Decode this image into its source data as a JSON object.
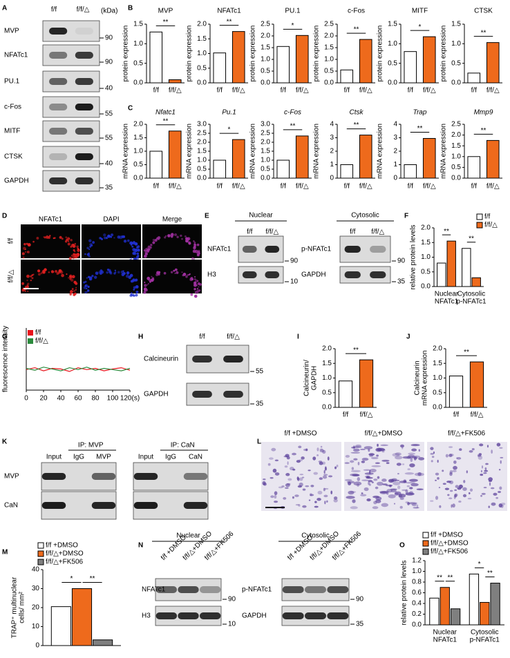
{
  "panel_letters": [
    "A",
    "B",
    "C",
    "D",
    "E",
    "F",
    "G",
    "H",
    "I",
    "J",
    "K",
    "L",
    "M",
    "N",
    "O"
  ],
  "panel_a": {
    "headers": [
      "f/f",
      "f/f/△"
    ],
    "unit": "(kDa)",
    "rows": [
      {
        "label": "MVP",
        "marker": 90
      },
      {
        "label": "NFATc1",
        "marker": 90
      },
      {
        "label": "PU.1",
        "marker": 40
      },
      {
        "label": "c-Fos",
        "marker": 55
      },
      {
        "label": "MITF",
        "marker": 55
      },
      {
        "label": "CTSK",
        "marker": 40
      },
      {
        "label": "GAPDH",
        "marker": 35
      }
    ]
  },
  "panel_d": {
    "channels": [
      "NFATc1",
      "DAPI",
      "Merge"
    ],
    "rows": [
      "f/f",
      "f/f/△"
    ]
  },
  "panel_e": {
    "nuclear": {
      "title": "Nuclear",
      "lanes": [
        "f/f",
        "f/f/△"
      ],
      "rows": [
        {
          "label": "NFATc1",
          "marker": 90
        },
        {
          "label": "H3",
          "marker": 10
        }
      ]
    },
    "cytosolic": {
      "title": "Cytosolic",
      "lanes": [
        "f/f",
        "f/f/△"
      ],
      "rows": [
        {
          "label": "p-NFATc1",
          "marker": 90
        },
        {
          "label": "GAPDH",
          "marker": 35
        }
      ]
    }
  },
  "panel_h": {
    "lanes": [
      "f/f",
      "f/f/△"
    ],
    "rows": [
      {
        "label": "Calcineurin",
        "marker": 55
      },
      {
        "label": "GAPDH",
        "marker": 35
      }
    ]
  },
  "panel_k": {
    "rows": [
      "MVP",
      "CaN"
    ],
    "groups": [
      {
        "title": "IP: MVP",
        "lanes": [
          "Input",
          "IgG",
          "MVP"
        ]
      },
      {
        "title": "IP: CaN",
        "lanes": [
          "Input",
          "IgG",
          "CaN"
        ]
      }
    ]
  },
  "panel_l": {
    "conditions": [
      "f/f +DMSO",
      "f/f/△+DMSO",
      "f/f/△+FK506"
    ]
  },
  "panel_n": {
    "nuclear": {
      "title": "Nuclear",
      "lanes": [
        "f/f +DMSO",
        "f/f/△+DMSO",
        "f/f/△+FK506"
      ],
      "rows": [
        {
          "label": "NFATc1",
          "marker": 90
        },
        {
          "label": "H3",
          "marker": 10
        }
      ]
    },
    "cytosolic": {
      "title": "Cytosolic",
      "lanes": [
        "f/f +DMSO",
        "f/f/△+DMSO",
        "f/f/△+FK506"
      ],
      "rows": [
        {
          "label": "p-NFATc1",
          "marker": 90
        },
        {
          "label": "GAPDH",
          "marker": 35
        }
      ]
    }
  },
  "chart_data": [
    {
      "type": "bar",
      "title": "MVP",
      "ylabel": "protein expression",
      "categories": [
        "f/f",
        "f/f/△"
      ],
      "values": [
        1.3,
        0.08
      ],
      "colors": [
        "#ffffff",
        "#ee6a1c"
      ],
      "ylim": [
        0,
        1.5
      ],
      "yticks": [
        {
          "value": 0,
          "label": "0.0"
        },
        0.5,
        {
          "value": 1,
          "label": "1.0"
        },
        1.5
      ],
      "significance": [
        "**"
      ]
    },
    {
      "type": "bar",
      "title": "NFATc1",
      "ylabel": "protein expression",
      "categories": [
        "f/f",
        "f/f/△"
      ],
      "values": [
        1.02,
        1.75
      ],
      "colors": [
        "#ffffff",
        "#ee6a1c"
      ],
      "ylim": [
        0,
        2
      ],
      "yticks": [
        {
          "value": 0,
          "label": "0.0"
        },
        0.5,
        {
          "value": 1,
          "label": "1.0"
        },
        1.5,
        {
          "value": 2,
          "label": "2.0"
        }
      ],
      "significance": [
        "**"
      ]
    },
    {
      "type": "bar",
      "title": "PU.1",
      "ylabel": "protein expression",
      "categories": [
        "f/f",
        "f/f/△"
      ],
      "values": [
        1.55,
        2.02
      ],
      "colors": [
        "#ffffff",
        "#ee6a1c"
      ],
      "ylim": [
        0,
        2.5
      ],
      "yticks": [
        {
          "value": 0,
          "label": "0.0"
        },
        0.5,
        {
          "value": 1,
          "label": "1.0"
        },
        1.5,
        {
          "value": 2,
          "label": "2.0"
        },
        2.5
      ],
      "significance": [
        "*"
      ]
    },
    {
      "type": "bar",
      "title": "c-Fos",
      "ylabel": "protein expression",
      "categories": [
        "f/f",
        "f/f/△"
      ],
      "values": [
        0.55,
        1.85
      ],
      "colors": [
        "#ffffff",
        "#ee6a1c"
      ],
      "ylim": [
        0,
        2.5
      ],
      "yticks": [
        {
          "value": 0,
          "label": "0.0"
        },
        0.5,
        {
          "value": 1,
          "label": "1.0"
        },
        1.5,
        {
          "value": 2,
          "label": "2.0"
        },
        2.5
      ],
      "significance": [
        "**"
      ]
    },
    {
      "type": "bar",
      "title": "MITF",
      "ylabel": "protein expression",
      "categories": [
        "f/f",
        "f/f/△"
      ],
      "values": [
        0.8,
        1.18
      ],
      "colors": [
        "#ffffff",
        "#ee6a1c"
      ],
      "ylim": [
        0,
        1.5
      ],
      "yticks": [
        {
          "value": 0,
          "label": "0.0"
        },
        0.5,
        {
          "value": 1,
          "label": "1.0"
        },
        1.5
      ],
      "significance": [
        "*"
      ]
    },
    {
      "type": "bar",
      "title": "CTSK",
      "ylabel": "protein expression",
      "categories": [
        "f/f",
        "f/f/△"
      ],
      "values": [
        0.25,
        1.03
      ],
      "colors": [
        "#ffffff",
        "#ee6a1c"
      ],
      "ylim": [
        0,
        1.5
      ],
      "yticks": [
        {
          "value": 0,
          "label": "0.0"
        },
        0.5,
        {
          "value": 1,
          "label": "1.0"
        },
        1.5
      ],
      "significance": [
        "**"
      ]
    },
    {
      "type": "bar",
      "title": "Nfatc1",
      "title_style": "italic",
      "ylabel": "mRNA expression",
      "categories": [
        "f/f",
        "f/f/△"
      ],
      "values": [
        1.0,
        1.75
      ],
      "colors": [
        "#ffffff",
        "#ee6a1c"
      ],
      "ylim": [
        0,
        2
      ],
      "yticks": [
        {
          "value": 0,
          "label": "0.0"
        },
        0.5,
        {
          "value": 1,
          "label": "1.0"
        },
        1.5,
        {
          "value": 2,
          "label": "2.0"
        }
      ],
      "significance": [
        "**"
      ]
    },
    {
      "type": "bar",
      "title": "Pu.1",
      "title_style": "italic",
      "ylabel": "mRNA expression",
      "categories": [
        "f/f",
        "f/f/△"
      ],
      "values": [
        1.0,
        2.15
      ],
      "colors": [
        "#ffffff",
        "#ee6a1c"
      ],
      "ylim": [
        0,
        3
      ],
      "yticks": [
        {
          "value": 0,
          "label": "0.0"
        },
        0.5,
        {
          "value": 1,
          "label": "1.0"
        },
        1.5,
        {
          "value": 2,
          "label": "2.0"
        },
        2.5,
        {
          "value": 3,
          "label": "3.0"
        }
      ],
      "significance": [
        "*"
      ]
    },
    {
      "type": "bar",
      "title": "c-Fos",
      "title_style": "italic",
      "ylabel": "mRNA expression",
      "categories": [
        "f/f",
        "f/f/△"
      ],
      "values": [
        1.0,
        2.35
      ],
      "colors": [
        "#ffffff",
        "#ee6a1c"
      ],
      "ylim": [
        0,
        3
      ],
      "yticks": [
        {
          "value": 0,
          "label": "0.0"
        },
        0.5,
        {
          "value": 1,
          "label": "1.0"
        },
        1.5,
        {
          "value": 2,
          "label": "2.0"
        },
        2.5,
        {
          "value": 3,
          "label": "3.0"
        }
      ],
      "significance": [
        "**"
      ]
    },
    {
      "type": "bar",
      "title": "Ctsk",
      "title_style": "italic",
      "ylabel": "mRNA expression",
      "categories": [
        "f/f",
        "f/f/△"
      ],
      "values": [
        1.0,
        3.2
      ],
      "colors": [
        "#ffffff",
        "#ee6a1c"
      ],
      "ylim": [
        0,
        4
      ],
      "yticks": [
        0,
        1,
        2,
        3,
        4
      ],
      "significance": [
        "**"
      ]
    },
    {
      "type": "bar",
      "title": "Trap",
      "title_style": "italic",
      "ylabel": "mRNA expression",
      "categories": [
        "f/f",
        "f/f/△"
      ],
      "values": [
        1.0,
        2.95
      ],
      "colors": [
        "#ffffff",
        "#ee6a1c"
      ],
      "ylim": [
        0,
        4
      ],
      "yticks": [
        0,
        1,
        2,
        3,
        4
      ],
      "significance": [
        "**"
      ]
    },
    {
      "type": "bar",
      "title": "Mmp9",
      "title_style": "italic",
      "ylabel": "mRNA expression",
      "categories": [
        "f/f",
        "f/f/△"
      ],
      "values": [
        1.0,
        1.75
      ],
      "colors": [
        "#ffffff",
        "#ee6a1c"
      ],
      "ylim": [
        0,
        2.5
      ],
      "yticks": [
        {
          "value": 0,
          "label": "0.0"
        },
        0.5,
        {
          "value": 1,
          "label": "1.0"
        },
        1.5,
        {
          "value": 2,
          "label": "2.0"
        },
        2.5
      ],
      "significance": [
        "**"
      ]
    },
    {
      "type": "grouped_bar",
      "ylabel": "relative protein levels",
      "categories": [
        [
          "Nuclear",
          "NFATc1"
        ],
        [
          "Cytosolic",
          "p-NFATc1"
        ]
      ],
      "series": [
        {
          "name": "f/f",
          "color": "#ffffff",
          "values": [
            0.8,
            1.3
          ]
        },
        {
          "name": "f/f/△",
          "color": "#ee6a1c",
          "values": [
            1.55,
            0.3
          ]
        }
      ],
      "ylim": [
        0,
        2
      ],
      "yticks": [
        {
          "value": 0,
          "label": "0.0"
        },
        0.5,
        {
          "value": 1,
          "label": "1.0"
        },
        1.5,
        {
          "value": 2,
          "label": "2.0"
        }
      ],
      "significance": [
        [
          "**"
        ],
        [
          "**"
        ]
      ],
      "legend": "top-right"
    },
    {
      "type": "line",
      "ylabel": "fluorescence intensity",
      "x": [
        0,
        10,
        20,
        30,
        40,
        50,
        60,
        70,
        80,
        90,
        100,
        110,
        120
      ],
      "series": [
        {
          "name": "f/f",
          "color": "#e8141c",
          "values": [
            33,
            36,
            31,
            35,
            34,
            30,
            36,
            33,
            35,
            31,
            34,
            36,
            32
          ]
        },
        {
          "name": "f/f/△",
          "color": "#2a8a3c",
          "values": [
            35,
            32,
            37,
            34,
            31,
            36,
            33,
            37,
            32,
            35,
            33,
            31,
            35
          ]
        }
      ],
      "xlim": [
        0,
        120
      ],
      "xticks": [
        0,
        20,
        40,
        60,
        80,
        100,
        {
          "value": 120,
          "label": "120(s)"
        }
      ],
      "ylim": [
        0,
        100
      ],
      "legend": "top-left"
    },
    {
      "type": "bar",
      "ylabel": [
        "Calcineurin/",
        "GAPDH"
      ],
      "categories": [
        "f/f",
        "f/f/△"
      ],
      "values": [
        0.9,
        1.62
      ],
      "colors": [
        "#ffffff",
        "#ee6a1c"
      ],
      "ylim": [
        0,
        2
      ],
      "yticks": [
        {
          "value": 0,
          "label": "0.0"
        },
        0.5,
        {
          "value": 1,
          "label": "1.0"
        },
        1.5,
        {
          "value": 2,
          "label": "2.0"
        }
      ],
      "significance": [
        "**"
      ]
    },
    {
      "type": "bar",
      "ylabel": [
        "Calcineurin",
        "mRNA expression"
      ],
      "categories": [
        "f/f",
        "f/f/△"
      ],
      "values": [
        1.07,
        1.55
      ],
      "colors": [
        "#ffffff",
        "#ee6a1c"
      ],
      "ylim": [
        0,
        2
      ],
      "yticks": [
        {
          "value": 0,
          "label": "0.0"
        },
        0.5,
        {
          "value": 1,
          "label": "1.0"
        },
        1.5,
        {
          "value": 2,
          "label": "2.0"
        }
      ],
      "significance": [
        "**"
      ]
    },
    {
      "type": "grouped_bar",
      "ylabel": [
        "TRAP⁺ multinuclear",
        "cells/ mm²"
      ],
      "categories": [
        null
      ],
      "series": [
        {
          "name": "f/f +DMSO",
          "color": "#ffffff",
          "values": [
            20.5
          ]
        },
        {
          "name": "f/f/△+DMSO",
          "color": "#ee6a1c",
          "values": [
            30
          ]
        },
        {
          "name": "f/f/△+FK506",
          "color": "#7f7f7f",
          "values": [
            3
          ]
        }
      ],
      "ylim": [
        0,
        40
      ],
      "yticks": [
        0,
        10,
        20,
        30,
        40
      ],
      "significance": [
        [
          "*",
          "**"
        ]
      ],
      "legend": "top-left"
    },
    {
      "type": "grouped_bar",
      "ylabel": "relative protein levels",
      "categories": [
        [
          "Nuclear",
          "NFATc1"
        ],
        [
          "Cytosolic",
          "p-NFATc1"
        ]
      ],
      "series": [
        {
          "name": "f/f +DMSO",
          "color": "#ffffff",
          "values": [
            0.5,
            0.95
          ]
        },
        {
          "name": "f/f/△+DMSO",
          "color": "#ee6a1c",
          "values": [
            0.7,
            0.42
          ]
        },
        {
          "name": "f/f/△+FK506",
          "color": "#7f7f7f",
          "values": [
            0.3,
            0.78
          ]
        }
      ],
      "ylim": [
        0,
        1.2
      ],
      "yticks": [
        {
          "value": 0,
          "label": "0.0"
        },
        0.2,
        0.4,
        0.6,
        0.8,
        {
          "value": 1,
          "label": "1.0"
        },
        1.2
      ],
      "significance": [
        [
          "**",
          "**"
        ],
        [
          "*",
          "**"
        ]
      ],
      "legend": "top-left"
    }
  ]
}
